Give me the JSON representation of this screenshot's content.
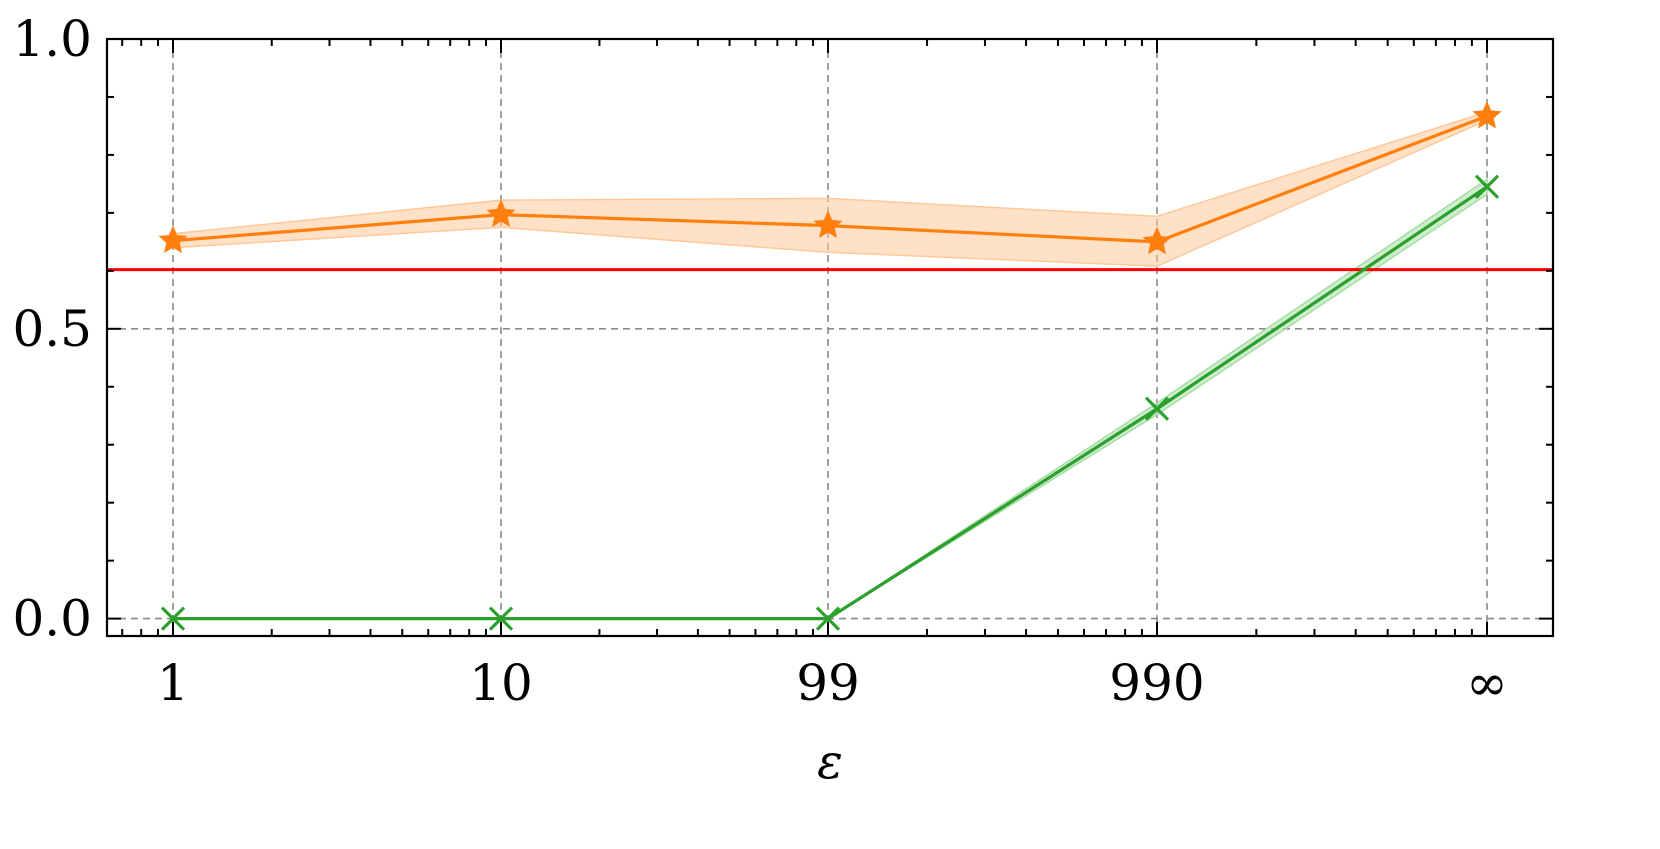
{
  "chart_data": {
    "type": "line",
    "x_categories": [
      "1",
      "10",
      "99",
      "990",
      "∞"
    ],
    "xlabel": "ε",
    "ylabel": "",
    "ylim": [
      -0.03,
      1.0
    ],
    "y_ticks": [
      "0.0",
      "0.5",
      "1.0"
    ],
    "y_tick_values": [
      0.0,
      0.5,
      1.0
    ],
    "grid": true,
    "series": [
      {
        "color": "#ff7f0e",
        "band_color": "#ffc89a",
        "marker": "star",
        "values": [
          0.652,
          0.697,
          0.678,
          0.65,
          0.867
        ],
        "lower": [
          0.64,
          0.675,
          0.632,
          0.608,
          0.86
        ],
        "upper": [
          0.664,
          0.722,
          0.725,
          0.694,
          0.874
        ]
      },
      {
        "color": "#2ca02c",
        "band_color": "#a6dca6",
        "marker": "x",
        "values": [
          0.0,
          0.0,
          0.0,
          0.362,
          0.745
        ],
        "lower": [
          0.0,
          0.0,
          0.0,
          0.352,
          0.732
        ],
        "upper": [
          0.0,
          0.0,
          0.0,
          0.372,
          0.758
        ]
      }
    ],
    "reference_line": {
      "y": 0.602,
      "color": "#ff0000"
    }
  }
}
